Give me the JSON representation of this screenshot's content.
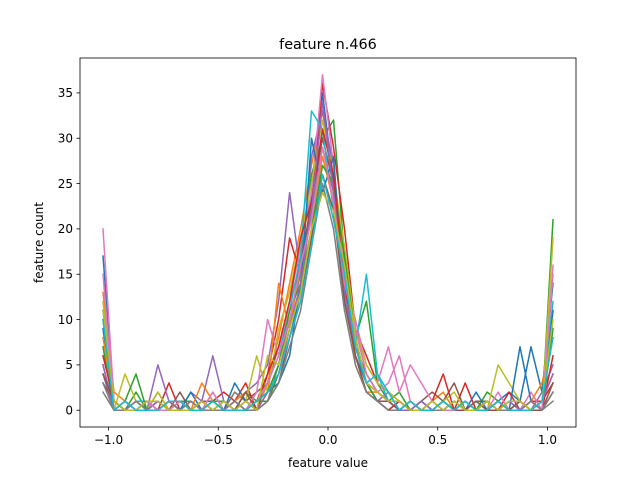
{
  "chart_data": {
    "type": "line",
    "title": "feature n.466",
    "xlabel": "feature value",
    "ylabel": "feature count",
    "xlim": [
      -1.13,
      1.13
    ],
    "ylim": [
      -1.85,
      38.85
    ],
    "xticks": [
      -1.0,
      -0.5,
      0.0,
      0.5,
      1.0
    ],
    "xtick_labels": [
      "−1.0",
      "−0.5",
      "0.0",
      "0.5",
      "1.0"
    ],
    "yticks": [
      0,
      5,
      10,
      15,
      20,
      25,
      30,
      35
    ],
    "ytick_labels": [
      "0",
      "5",
      "10",
      "15",
      "20",
      "25",
      "30",
      "35"
    ],
    "grid": false,
    "x": [
      -1.025,
      -0.975,
      -0.925,
      -0.875,
      -0.825,
      -0.775,
      -0.725,
      -0.675,
      -0.625,
      -0.575,
      -0.525,
      -0.475,
      -0.425,
      -0.375,
      -0.325,
      -0.275,
      -0.225,
      -0.175,
      -0.125,
      -0.075,
      -0.025,
      0.025,
      0.075,
      0.125,
      0.175,
      0.225,
      0.275,
      0.325,
      0.375,
      0.425,
      0.475,
      0.525,
      0.575,
      0.625,
      0.675,
      0.725,
      0.775,
      0.825,
      0.875,
      0.925,
      0.975,
      1.025
    ],
    "series": [
      {
        "color": "#1f77b4",
        "values": [
          17,
          1,
          0,
          1,
          0,
          2,
          0,
          1,
          0,
          1,
          0,
          0,
          1,
          0,
          1,
          2,
          3,
          6,
          14,
          24,
          35,
          25,
          14,
          7,
          4,
          2,
          1,
          1,
          0,
          1,
          0,
          0,
          1,
          0,
          1,
          0,
          1,
          2,
          1,
          7,
          2,
          14
        ]
      },
      {
        "color": "#ff7f0e",
        "values": [
          13,
          2,
          1,
          0,
          1,
          0,
          1,
          0,
          0,
          1,
          1,
          0,
          2,
          1,
          0,
          3,
          8,
          14,
          20,
          27,
          33,
          24,
          15,
          6,
          3,
          2,
          1,
          0,
          1,
          0,
          1,
          2,
          0,
          1,
          0,
          1,
          0,
          1,
          0,
          1,
          3,
          8
        ]
      },
      {
        "color": "#2ca02c",
        "values": [
          10,
          1,
          0,
          2,
          0,
          1,
          0,
          1,
          1,
          0,
          0,
          1,
          0,
          2,
          1,
          1,
          4,
          9,
          17,
          26,
          30,
          32,
          17,
          8,
          12,
          3,
          1,
          2,
          0,
          0,
          1,
          0,
          1,
          0,
          0,
          2,
          1,
          0,
          1,
          0,
          0,
          21
        ]
      },
      {
        "color": "#d62728",
        "values": [
          5,
          0,
          1,
          0,
          1,
          0,
          3,
          0,
          1,
          0,
          1,
          2,
          1,
          3,
          0,
          4,
          10,
          19,
          15,
          22,
          36,
          29,
          20,
          9,
          6,
          3,
          2,
          1,
          0,
          1,
          0,
          1,
          0,
          3,
          0,
          1,
          0,
          2,
          0,
          1,
          1,
          3
        ]
      },
      {
        "color": "#9467bd",
        "values": [
          4,
          0,
          0,
          1,
          0,
          5,
          1,
          0,
          2,
          1,
          6,
          1,
          0,
          2,
          3,
          5,
          12,
          24,
          15,
          28,
          33,
          27,
          12,
          7,
          3,
          1,
          2,
          0,
          1,
          0,
          0,
          1,
          0,
          0,
          1,
          0,
          0,
          1,
          0,
          0,
          2,
          5
        ]
      },
      {
        "color": "#8c564b",
        "values": [
          3,
          1,
          0,
          0,
          1,
          0,
          0,
          2,
          0,
          1,
          0,
          1,
          0,
          1,
          2,
          3,
          7,
          12,
          16,
          23,
          30,
          25,
          16,
          9,
          4,
          2,
          1,
          0,
          0,
          1,
          2,
          1,
          3,
          0,
          1,
          1,
          0,
          0,
          1,
          0,
          0,
          2
        ]
      },
      {
        "color": "#e377c2",
        "values": [
          20,
          1,
          0,
          1,
          0,
          0,
          1,
          0,
          1,
          0,
          2,
          0,
          1,
          0,
          2,
          10,
          6,
          12,
          18,
          24,
          37,
          27,
          15,
          10,
          5,
          3,
          7,
          2,
          5,
          3,
          1,
          0,
          1,
          0,
          0,
          1,
          0,
          1,
          0,
          2,
          0,
          16
        ]
      },
      {
        "color": "#7f7f7f",
        "values": [
          2,
          0,
          1,
          0,
          0,
          1,
          0,
          1,
          0,
          0,
          1,
          0,
          2,
          1,
          0,
          1,
          5,
          10,
          15,
          22,
          29,
          24,
          14,
          8,
          3,
          2,
          1,
          1,
          0,
          0,
          1,
          0,
          0,
          1,
          0,
          0,
          1,
          0,
          0,
          1,
          0,
          1
        ]
      },
      {
        "color": "#bcbd22",
        "values": [
          12,
          0,
          4,
          1,
          0,
          2,
          0,
          1,
          0,
          1,
          0,
          1,
          0,
          1,
          6,
          2,
          9,
          13,
          19,
          25,
          32,
          26,
          18,
          9,
          5,
          3,
          2,
          1,
          0,
          1,
          0,
          1,
          2,
          0,
          1,
          0,
          5,
          3,
          1,
          0,
          0,
          19
        ]
      },
      {
        "color": "#17becf",
        "values": [
          11,
          1,
          0,
          1,
          1,
          0,
          1,
          0,
          1,
          0,
          0,
          1,
          0,
          0,
          1,
          3,
          6,
          11,
          17,
          33,
          31,
          22,
          13,
          7,
          15,
          4,
          1,
          0,
          1,
          0,
          0,
          1,
          0,
          0,
          1,
          0,
          0,
          1,
          0,
          0,
          1,
          12
        ]
      },
      {
        "color": "#1f77b4",
        "values": [
          9,
          0,
          1,
          0,
          0,
          1,
          0,
          0,
          2,
          0,
          1,
          0,
          3,
          1,
          0,
          2,
          4,
          8,
          13,
          30,
          24,
          28,
          12,
          6,
          3,
          1,
          0,
          1,
          0,
          1,
          0,
          0,
          1,
          0,
          2,
          0,
          1,
          0,
          7,
          1,
          0,
          11
        ]
      },
      {
        "color": "#ff7f0e",
        "values": [
          8,
          1,
          0,
          0,
          1,
          0,
          1,
          0,
          0,
          3,
          1,
          0,
          1,
          2,
          0,
          2,
          14,
          9,
          16,
          21,
          28,
          23,
          15,
          5,
          2,
          2,
          1,
          0,
          1,
          0,
          1,
          0,
          0,
          1,
          0,
          1,
          0,
          0,
          1,
          0,
          1,
          4
        ]
      },
      {
        "color": "#2ca02c",
        "values": [
          7,
          0,
          1,
          4,
          0,
          0,
          1,
          1,
          0,
          0,
          1,
          1,
          0,
          0,
          1,
          2,
          5,
          11,
          14,
          20,
          27,
          25,
          17,
          8,
          3,
          1,
          1,
          0,
          1,
          0,
          0,
          1,
          0,
          0,
          0,
          1,
          0,
          0,
          1,
          0,
          0,
          9
        ]
      },
      {
        "color": "#d62728",
        "values": [
          6,
          1,
          0,
          0,
          1,
          0,
          0,
          1,
          0,
          1,
          0,
          0,
          1,
          0,
          1,
          4,
          7,
          12,
          19,
          23,
          31,
          26,
          14,
          6,
          2,
          1,
          0,
          1,
          0,
          0,
          1,
          4,
          0,
          1,
          0,
          0,
          1,
          0,
          0,
          1,
          0,
          6
        ]
      },
      {
        "color": "#9467bd",
        "values": [
          5,
          0,
          0,
          1,
          0,
          1,
          0,
          0,
          1,
          0,
          0,
          1,
          0,
          1,
          0,
          2,
          4,
          9,
          14,
          22,
          34,
          24,
          13,
          7,
          3,
          2,
          1,
          0,
          0,
          1,
          0,
          0,
          1,
          0,
          0,
          1,
          0,
          1,
          0,
          0,
          1,
          4
        ]
      },
      {
        "color": "#8c564b",
        "values": [
          4,
          1,
          0,
          0,
          0,
          0,
          1,
          0,
          0,
          1,
          1,
          0,
          0,
          2,
          0,
          1,
          3,
          8,
          12,
          19,
          26,
          22,
          12,
          6,
          2,
          1,
          1,
          0,
          1,
          0,
          0,
          1,
          0,
          0,
          1,
          0,
          0,
          0,
          1,
          0,
          0,
          3
        ]
      },
      {
        "color": "#e377c2",
        "values": [
          15,
          0,
          1,
          0,
          1,
          0,
          0,
          1,
          0,
          0,
          2,
          0,
          1,
          0,
          1,
          3,
          6,
          10,
          16,
          21,
          29,
          23,
          14,
          9,
          4,
          2,
          3,
          6,
          1,
          0,
          1,
          0,
          0,
          1,
          0,
          0,
          2,
          0,
          0,
          1,
          0,
          15
        ]
      },
      {
        "color": "#7f7f7f",
        "values": [
          3,
          0,
          0,
          1,
          0,
          0,
          1,
          0,
          1,
          0,
          0,
          0,
          1,
          0,
          0,
          1,
          3,
          7,
          11,
          18,
          25,
          20,
          11,
          5,
          2,
          1,
          0,
          0,
          1,
          0,
          0,
          0,
          1,
          0,
          0,
          1,
          0,
          0,
          0,
          1,
          0,
          2
        ]
      },
      {
        "color": "#bcbd22",
        "values": [
          11,
          1,
          0,
          0,
          1,
          1,
          0,
          0,
          0,
          1,
          0,
          1,
          0,
          1,
          0,
          6,
          5,
          9,
          13,
          20,
          24,
          22,
          16,
          8,
          3,
          2,
          1,
          1,
          0,
          0,
          1,
          0,
          1,
          0,
          0,
          1,
          0,
          1,
          1,
          0,
          1,
          10
        ]
      },
      {
        "color": "#17becf",
        "values": [
          10,
          0,
          1,
          0,
          0,
          0,
          1,
          1,
          0,
          0,
          1,
          0,
          0,
          0,
          1,
          2,
          4,
          8,
          12,
          18,
          26,
          21,
          15,
          7,
          3,
          4,
          2,
          0,
          1,
          0,
          0,
          1,
          0,
          1,
          0,
          0,
          1,
          0,
          0,
          0,
          1,
          8
        ]
      }
    ]
  }
}
